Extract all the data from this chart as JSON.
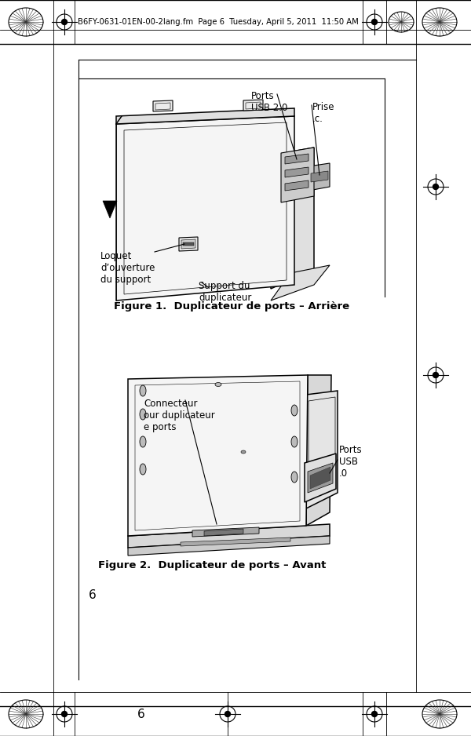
{
  "page_bg": "#ffffff",
  "header_text": "B6FY-0631-01EN-00-2lang.fm  Page 6  Tuesday, April 5, 2011  11:50 AM",
  "figure1_caption": "Figure 1.  Duplicateur de ports – Arrière",
  "figure2_caption": "Figure 2.  Duplicateur de ports – Avant",
  "page_number": "6",
  "fig1_labels": {
    "ports_usb": "Ports\nUSB 2.0",
    "prise": "Prise\n.c.",
    "loquet": "Loquet\nd’ouverture\ndu support",
    "support": "Support du\nduplicateur"
  },
  "fig2_labels": {
    "connecteur": "Connecteur\nour duplicateur\ne ports",
    "ports_usb": "Ports\nUSB\n.0"
  },
  "text_color": "#000000",
  "caption_fontsize": 9,
  "label_fontsize": 8.5,
  "header_fontsize": 7.2
}
